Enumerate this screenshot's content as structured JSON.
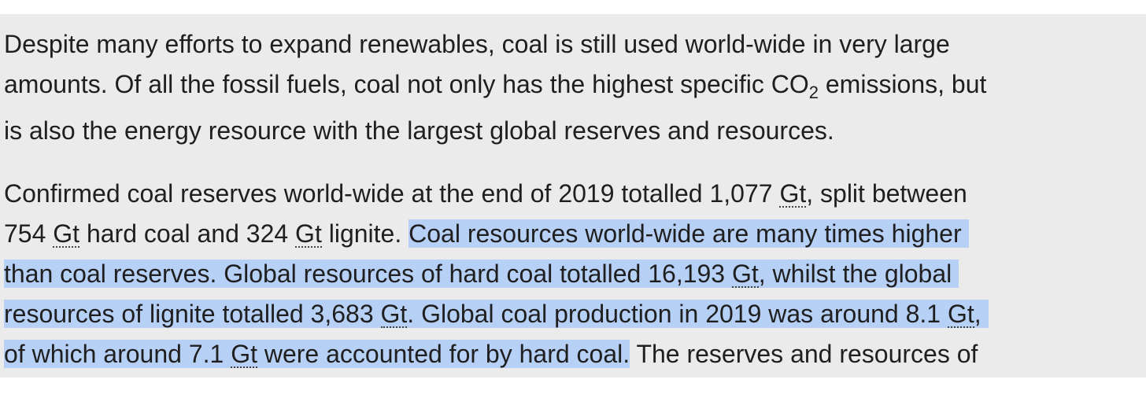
{
  "paragraphs": [
    {
      "lines": [
        [
          "Despite many efforts to expand renewables, coal is still used world-wide in very large"
        ],
        [
          "amounts. Of all the fossil fuels, coal not only has the highest specific CO",
          "2",
          " emissions, but"
        ],
        [
          "is also the energy resource with the largest global reserves and resources."
        ]
      ]
    },
    {
      "lines": [
        [
          "Confirmed coal reserves world-wide at the end of 2019 totalled 1,077 ",
          "Gt",
          ", split between"
        ],
        [
          "754 ",
          "Gt",
          " hard coal and 324 ",
          "Gt",
          " lignite. ",
          "Coal resources world-wide are many times higher "
        ],
        [
          "than coal reserves. Global resources of hard coal totalled 16,193 ",
          "Gt",
          ", whilst the global "
        ],
        [
          "resources of lignite totalled 3,683 ",
          "Gt",
          ". Global coal production in 2019 was around 8.1 ",
          "Gt",
          ", "
        ],
        [
          "of which around 7.1 ",
          "Gt",
          " were accounted for by hard coal.",
          " The reserves and resources of"
        ]
      ]
    }
  ]
}
